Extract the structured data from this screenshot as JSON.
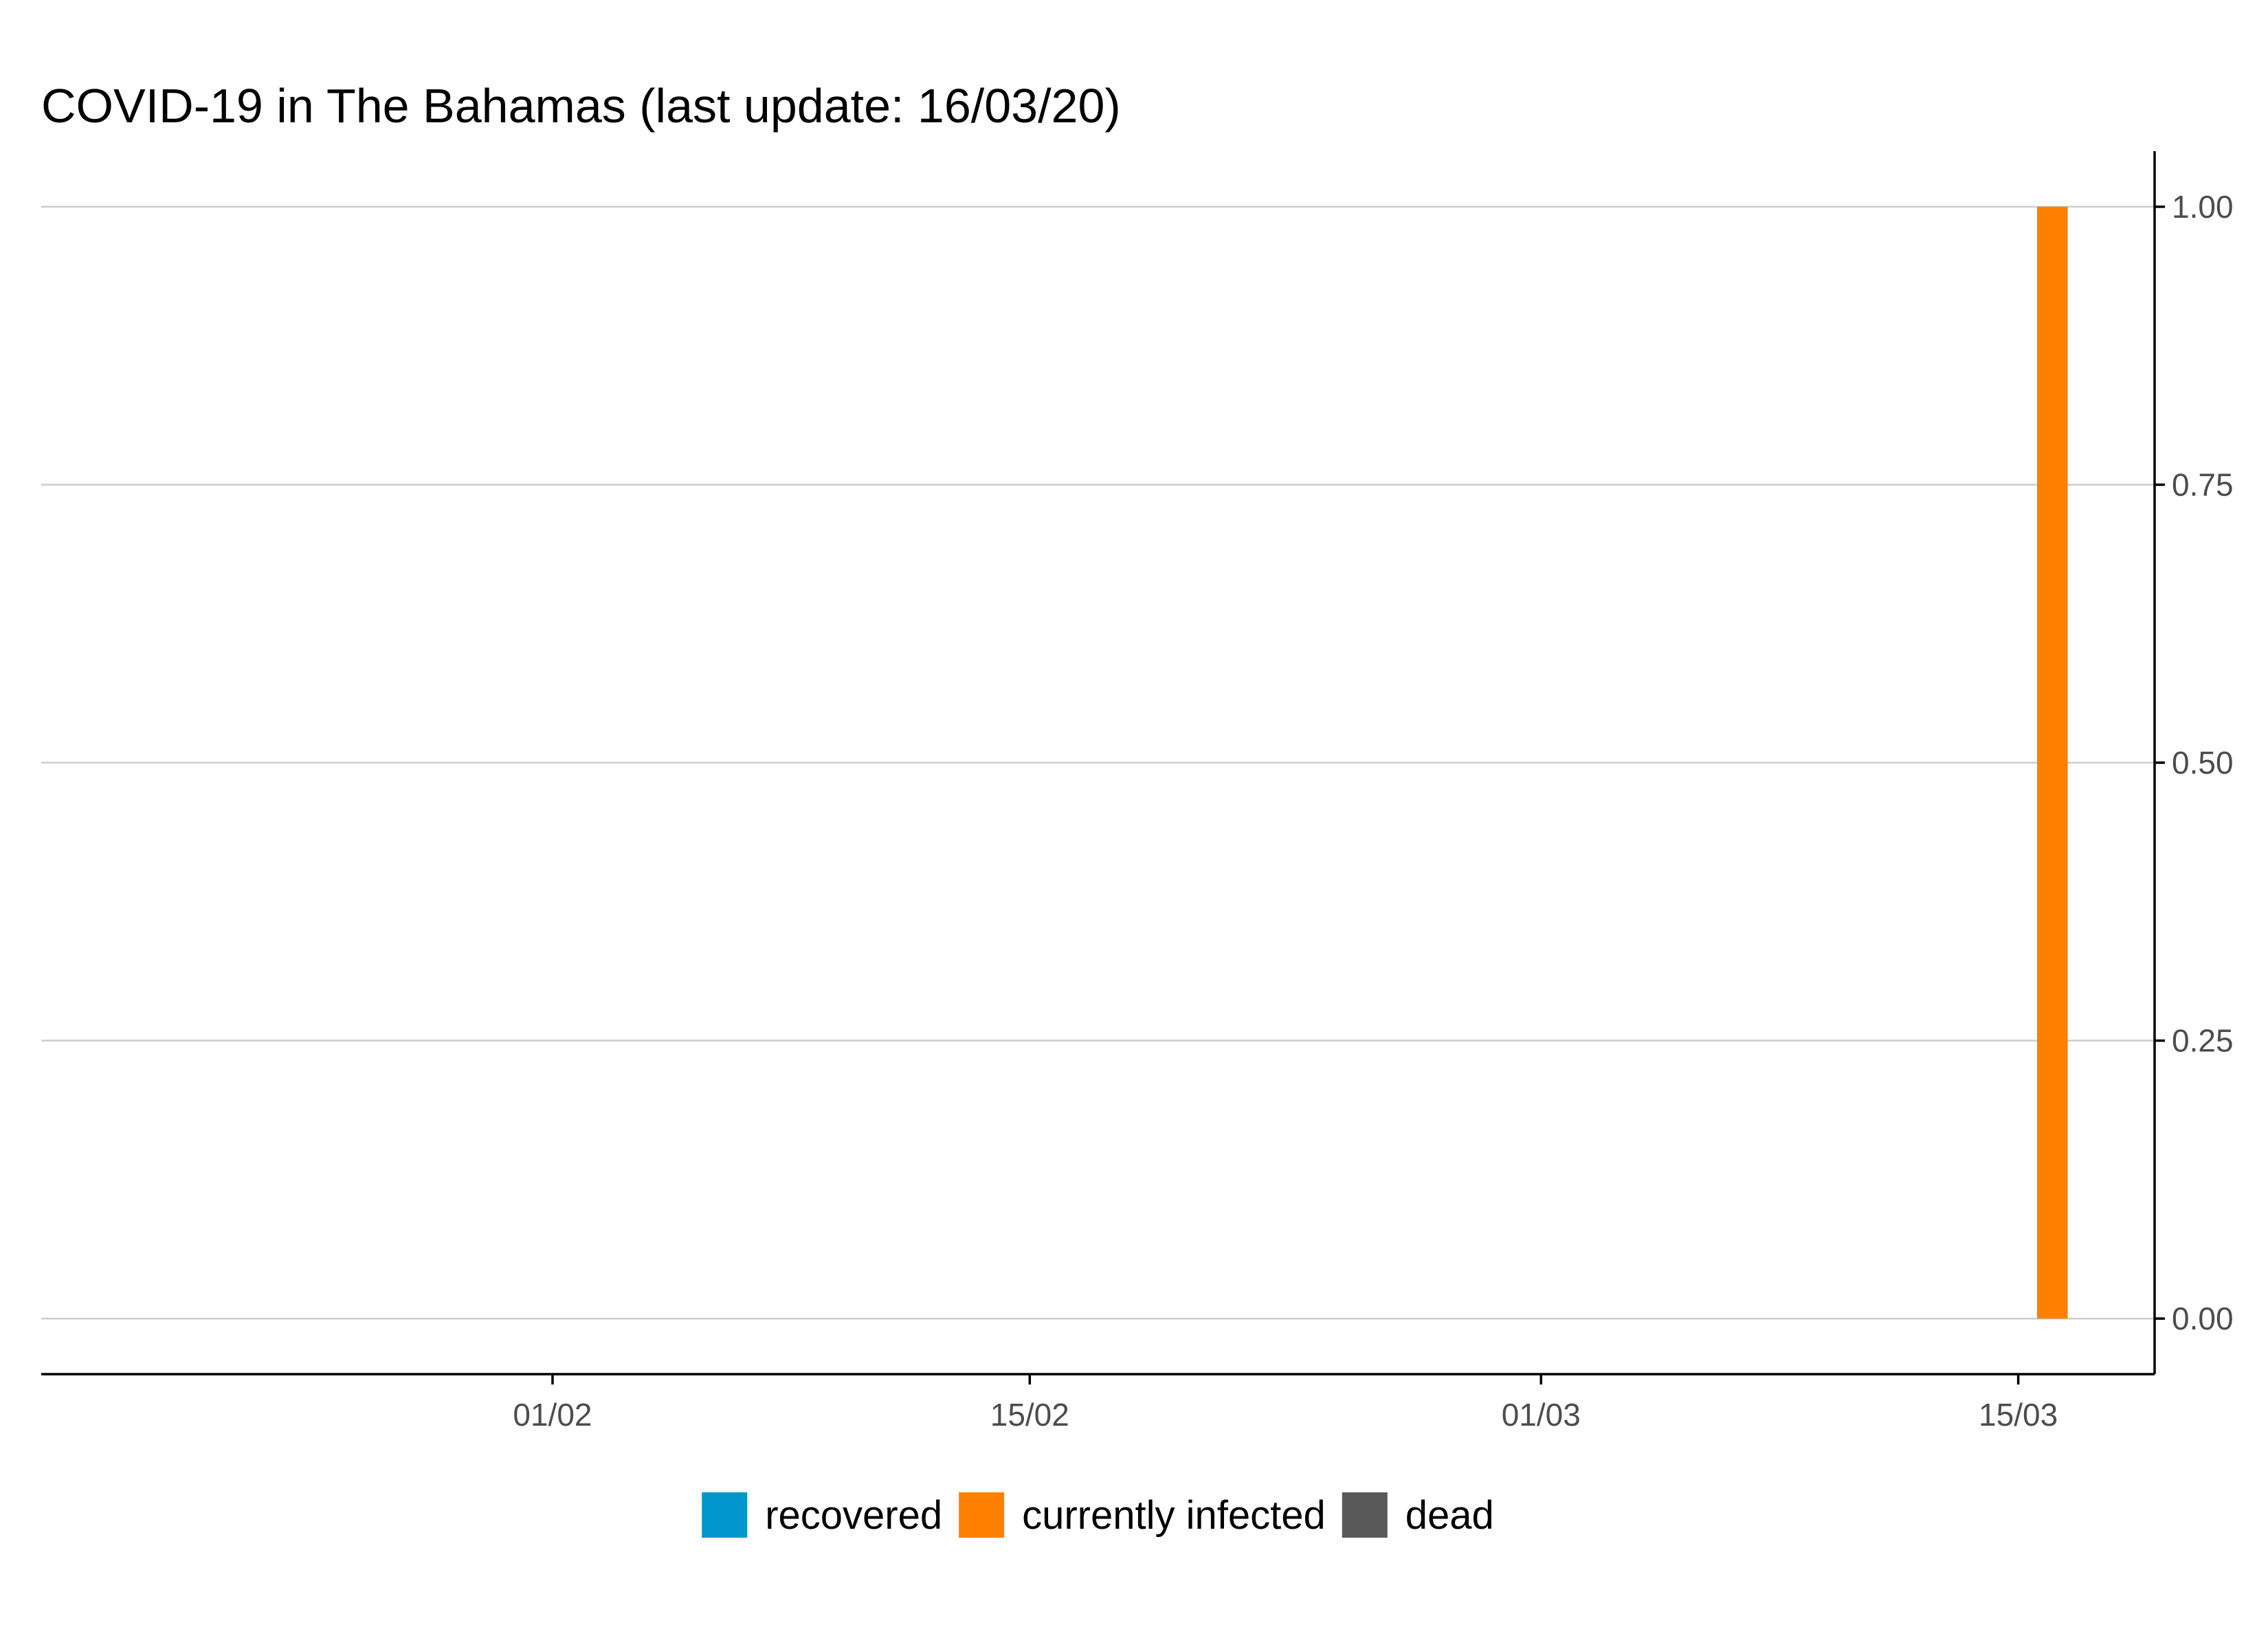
{
  "chart_data": {
    "type": "bar",
    "stacked": true,
    "title": "COVID-19 in The Bahamas (last update: 16/03/20)",
    "xlabel": "",
    "ylabel": "",
    "x_axis": {
      "type": "date",
      "range": [
        "2020-01-17",
        "2020-03-19"
      ],
      "ticks": [
        {
          "date": "2020-02-01",
          "label": "01/02"
        },
        {
          "date": "2020-02-15",
          "label": "15/02"
        },
        {
          "date": "2020-03-01",
          "label": "01/03"
        },
        {
          "date": "2020-03-15",
          "label": "15/03"
        }
      ]
    },
    "y_axis": {
      "position": "right",
      "range": [
        -0.05,
        1.05
      ],
      "ticks": [
        0,
        0.25,
        0.5,
        0.75,
        1
      ],
      "tick_labels": [
        "0.00",
        "0.25",
        "0.50",
        "0.75",
        "1.00"
      ]
    },
    "grid": "horizontal",
    "legend": {
      "placement": "bottom",
      "entries": [
        {
          "name": "recovered",
          "color": "#0096CC"
        },
        {
          "name": "currently infected",
          "color": "#FF8000"
        },
        {
          "name": "dead",
          "color": "#595959"
        }
      ]
    },
    "series": [
      {
        "name": "recovered",
        "color": "#0096CC",
        "points": [
          {
            "date": "2020-03-16",
            "value": 0
          }
        ]
      },
      {
        "name": "currently infected",
        "color": "#FF8000",
        "points": [
          {
            "date": "2020-03-16",
            "value": 1
          }
        ]
      },
      {
        "name": "dead",
        "color": "#595959",
        "points": [
          {
            "date": "2020-03-16",
            "value": 0
          }
        ]
      }
    ]
  }
}
